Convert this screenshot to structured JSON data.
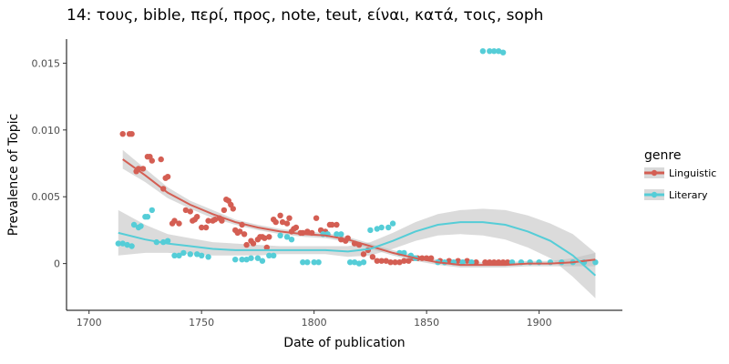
{
  "chart_data": {
    "type": "scatter",
    "title": "14: τους, bible, περί, προς, note, teut, είναι, κατά, τοις, soph",
    "xlabel": "Date of publication",
    "ylabel": "Prevalence of Topic",
    "xlim": [
      1690,
      1937
    ],
    "ylim": [
      -0.0035,
      0.0168
    ],
    "xticks": [
      1700,
      1750,
      1800,
      1850,
      1900
    ],
    "yticks": [
      0,
      0.005,
      0.01,
      0.015
    ],
    "ytick_labels": [
      "0",
      "0.005",
      "0.010",
      "0.015"
    ],
    "grid": false,
    "legend": {
      "title": "genre",
      "position": "right"
    },
    "series": [
      {
        "name": "Linguistic",
        "color": "#d45e53",
        "points": [
          [
            1715,
            0.0097
          ],
          [
            1718,
            0.0097
          ],
          [
            1719,
            0.0097
          ],
          [
            1721,
            0.0069
          ],
          [
            1722,
            0.0071
          ],
          [
            1724,
            0.0071
          ],
          [
            1726,
            0.008
          ],
          [
            1727,
            0.008
          ],
          [
            1728,
            0.0077
          ],
          [
            1732,
            0.0078
          ],
          [
            1733,
            0.0056
          ],
          [
            1734,
            0.0064
          ],
          [
            1735,
            0.0065
          ],
          [
            1737,
            0.003
          ],
          [
            1738,
            0.0032
          ],
          [
            1740,
            0.003
          ],
          [
            1743,
            0.004
          ],
          [
            1745,
            0.0039
          ],
          [
            1746,
            0.0032
          ],
          [
            1747,
            0.0033
          ],
          [
            1748,
            0.0035
          ],
          [
            1750,
            0.0027
          ],
          [
            1752,
            0.0027
          ],
          [
            1753,
            0.0032
          ],
          [
            1755,
            0.0032
          ],
          [
            1756,
            0.0033
          ],
          [
            1758,
            0.0034
          ],
          [
            1759,
            0.0032
          ],
          [
            1760,
            0.004
          ],
          [
            1761,
            0.0048
          ],
          [
            1762,
            0.0047
          ],
          [
            1763,
            0.0044
          ],
          [
            1764,
            0.0041
          ],
          [
            1765,
            0.0025
          ],
          [
            1766,
            0.0023
          ],
          [
            1767,
            0.0024
          ],
          [
            1768,
            0.0029
          ],
          [
            1769,
            0.0022
          ],
          [
            1770,
            0.0014
          ],
          [
            1772,
            0.0017
          ],
          [
            1773,
            0.0015
          ],
          [
            1775,
            0.0018
          ],
          [
            1776,
            0.002
          ],
          [
            1777,
            0.002
          ],
          [
            1778,
            0.0019
          ],
          [
            1779,
            0.0012
          ],
          [
            1780,
            0.002
          ],
          [
            1782,
            0.0033
          ],
          [
            1783,
            0.0031
          ],
          [
            1785,
            0.0036
          ],
          [
            1786,
            0.0031
          ],
          [
            1788,
            0.003
          ],
          [
            1789,
            0.0034
          ],
          [
            1790,
            0.0024
          ],
          [
            1791,
            0.0026
          ],
          [
            1792,
            0.0027
          ],
          [
            1794,
            0.0023
          ],
          [
            1795,
            0.0023
          ],
          [
            1797,
            0.0024
          ],
          [
            1799,
            0.0023
          ],
          [
            1801,
            0.0034
          ],
          [
            1803,
            0.0025
          ],
          [
            1805,
            0.0024
          ],
          [
            1806,
            0.0022
          ],
          [
            1807,
            0.0029
          ],
          [
            1808,
            0.0029
          ],
          [
            1810,
            0.0029
          ],
          [
            1812,
            0.0018
          ],
          [
            1814,
            0.0017
          ],
          [
            1815,
            0.0019
          ],
          [
            1818,
            0.0015
          ],
          [
            1820,
            0.0014
          ],
          [
            1822,
            0.0007
          ],
          [
            1824,
            0.001
          ],
          [
            1826,
            0.0005
          ],
          [
            1828,
            0.0002
          ],
          [
            1830,
            0.0002
          ],
          [
            1832,
            0.0002
          ],
          [
            1834,
            0.0001
          ],
          [
            1836,
            0.0001
          ],
          [
            1838,
            0.0001
          ],
          [
            1840,
            0.0002
          ],
          [
            1842,
            0.0002
          ],
          [
            1844,
            0.0004
          ],
          [
            1846,
            0.0004
          ],
          [
            1848,
            0.0004
          ],
          [
            1850,
            0.0004
          ],
          [
            1852,
            0.0004
          ],
          [
            1856,
            0.0002
          ],
          [
            1860,
            0.0002
          ],
          [
            1864,
            0.0002
          ],
          [
            1868,
            0.0002
          ],
          [
            1872,
            0.0001
          ],
          [
            1876,
            0.0001
          ],
          [
            1878,
            0.0001
          ],
          [
            1880,
            0.0001
          ],
          [
            1882,
            0.0001
          ],
          [
            1884,
            0.0001
          ],
          [
            1886,
            0.0001
          ]
        ],
        "trend": [
          [
            1715,
            0.0078
          ],
          [
            1725,
            0.0066
          ],
          [
            1735,
            0.0053
          ],
          [
            1745,
            0.0044
          ],
          [
            1755,
            0.0037
          ],
          [
            1765,
            0.0031
          ],
          [
            1775,
            0.0027
          ],
          [
            1785,
            0.0024
          ],
          [
            1795,
            0.0022
          ],
          [
            1805,
            0.0021
          ],
          [
            1815,
            0.0018
          ],
          [
            1825,
            0.0013
          ],
          [
            1835,
            0.0008
          ],
          [
            1845,
            0.0004
          ],
          [
            1855,
            0.0001
          ],
          [
            1865,
            -0.0001
          ],
          [
            1875,
            -0.0001
          ],
          [
            1885,
            -0.0001
          ],
          [
            1895,
            0.0
          ],
          [
            1905,
            0.0
          ],
          [
            1915,
            0.0001
          ],
          [
            1925,
            0.0003
          ]
        ],
        "band": [
          [
            1715,
            0.0071,
            0.0085
          ],
          [
            1725,
            0.0061,
            0.0071
          ],
          [
            1735,
            0.0049,
            0.0057
          ],
          [
            1745,
            0.0041,
            0.0047
          ],
          [
            1755,
            0.0034,
            0.004
          ],
          [
            1765,
            0.0029,
            0.0033
          ],
          [
            1775,
            0.0025,
            0.0029
          ],
          [
            1785,
            0.0022,
            0.0026
          ],
          [
            1795,
            0.002,
            0.0024
          ],
          [
            1805,
            0.0019,
            0.0023
          ],
          [
            1815,
            0.0016,
            0.002
          ],
          [
            1825,
            0.0011,
            0.0015
          ],
          [
            1835,
            0.0006,
            0.001
          ],
          [
            1845,
            0.0002,
            0.0006
          ],
          [
            1855,
            -0.0001,
            0.0003
          ],
          [
            1865,
            -0.0003,
            0.0001
          ],
          [
            1875,
            -0.0003,
            0.0001
          ],
          [
            1885,
            -0.0003,
            0.0001
          ],
          [
            1895,
            -0.0002,
            0.0002
          ],
          [
            1905,
            -0.0002,
            0.0002
          ],
          [
            1915,
            -0.0002,
            0.0004
          ],
          [
            1925,
            -0.0002,
            0.0008
          ]
        ]
      },
      {
        "name": "Literary",
        "color": "#55cdd7",
        "points": [
          [
            1713,
            0.0015
          ],
          [
            1715,
            0.0015
          ],
          [
            1717,
            0.0014
          ],
          [
            1719,
            0.0013
          ],
          [
            1720,
            0.0029
          ],
          [
            1722,
            0.0027
          ],
          [
            1723,
            0.0028
          ],
          [
            1725,
            0.0035
          ],
          [
            1726,
            0.0035
          ],
          [
            1728,
            0.004
          ],
          [
            1730,
            0.0016
          ],
          [
            1733,
            0.0016
          ],
          [
            1735,
            0.0017
          ],
          [
            1738,
            0.0006
          ],
          [
            1740,
            0.0006
          ],
          [
            1742,
            0.0008
          ],
          [
            1745,
            0.0007
          ],
          [
            1748,
            0.0007
          ],
          [
            1750,
            0.0006
          ],
          [
            1753,
            0.0005
          ],
          [
            1765,
            0.0003
          ],
          [
            1768,
            0.0003
          ],
          [
            1770,
            0.0003
          ],
          [
            1772,
            0.0004
          ],
          [
            1775,
            0.0004
          ],
          [
            1777,
            0.0002
          ],
          [
            1780,
            0.0006
          ],
          [
            1782,
            0.0006
          ],
          [
            1785,
            0.0021
          ],
          [
            1788,
            0.002
          ],
          [
            1790,
            0.0018
          ],
          [
            1795,
            0.0001
          ],
          [
            1797,
            0.0001
          ],
          [
            1800,
            0.0001
          ],
          [
            1802,
            0.0001
          ],
          [
            1804,
            0.0022
          ],
          [
            1806,
            0.0022
          ],
          [
            1810,
            0.0022
          ],
          [
            1812,
            0.0022
          ],
          [
            1816,
            0.0001
          ],
          [
            1818,
            0.0001
          ],
          [
            1820,
            0.0
          ],
          [
            1822,
            0.0001
          ],
          [
            1825,
            0.0025
          ],
          [
            1828,
            0.0026
          ],
          [
            1830,
            0.0027
          ],
          [
            1833,
            0.0027
          ],
          [
            1835,
            0.003
          ],
          [
            1838,
            0.0008
          ],
          [
            1840,
            0.0008
          ],
          [
            1843,
            0.0006
          ],
          [
            1845,
            0.0004
          ],
          [
            1855,
            0.0001
          ],
          [
            1858,
            0.0001
          ],
          [
            1862,
            0.0001
          ],
          [
            1866,
            0.0001
          ],
          [
            1870,
            0.0001
          ],
          [
            1875,
            0.0159
          ],
          [
            1878,
            0.0159
          ],
          [
            1880,
            0.0159
          ],
          [
            1882,
            0.0159
          ],
          [
            1884,
            0.0158
          ],
          [
            1888,
            0.0001
          ],
          [
            1892,
            0.0001
          ],
          [
            1896,
            0.0001
          ],
          [
            1900,
            0.0001
          ],
          [
            1905,
            0.0001
          ],
          [
            1910,
            0.0001
          ],
          [
            1915,
            0.0001
          ],
          [
            1920,
            0.0001
          ],
          [
            1925,
            0.0001
          ]
        ],
        "trend": [
          [
            1713,
            0.0023
          ],
          [
            1725,
            0.0018
          ],
          [
            1735,
            0.0015
          ],
          [
            1745,
            0.0013
          ],
          [
            1755,
            0.0011
          ],
          [
            1765,
            0.001
          ],
          [
            1775,
            0.001
          ],
          [
            1785,
            0.001
          ],
          [
            1795,
            0.001
          ],
          [
            1805,
            0.001
          ],
          [
            1815,
            0.0009
          ],
          [
            1825,
            0.0011
          ],
          [
            1835,
            0.0017
          ],
          [
            1845,
            0.0024
          ],
          [
            1855,
            0.0029
          ],
          [
            1865,
            0.0031
          ],
          [
            1875,
            0.0031
          ],
          [
            1885,
            0.0029
          ],
          [
            1895,
            0.0024
          ],
          [
            1905,
            0.0017
          ],
          [
            1915,
            0.0006
          ],
          [
            1925,
            -0.0009
          ]
        ],
        "band": [
          [
            1713,
            0.0006,
            0.004
          ],
          [
            1725,
            0.0008,
            0.0029
          ],
          [
            1735,
            0.0008,
            0.0022
          ],
          [
            1745,
            0.0007,
            0.0019
          ],
          [
            1755,
            0.0006,
            0.0016
          ],
          [
            1765,
            0.0006,
            0.0015
          ],
          [
            1775,
            0.0006,
            0.0014
          ],
          [
            1785,
            0.0007,
            0.0013
          ],
          [
            1795,
            0.0007,
            0.0013
          ],
          [
            1805,
            0.0007,
            0.0013
          ],
          [
            1815,
            0.0005,
            0.0013
          ],
          [
            1825,
            0.0006,
            0.0016
          ],
          [
            1835,
            0.0011,
            0.0023
          ],
          [
            1845,
            0.0017,
            0.0031
          ],
          [
            1855,
            0.0021,
            0.0037
          ],
          [
            1865,
            0.0022,
            0.004
          ],
          [
            1875,
            0.0021,
            0.0041
          ],
          [
            1885,
            0.0018,
            0.004
          ],
          [
            1895,
            0.0012,
            0.0036
          ],
          [
            1905,
            0.0004,
            0.003
          ],
          [
            1915,
            -0.001,
            0.0022
          ],
          [
            1925,
            -0.0026,
            0.0008
          ]
        ]
      }
    ]
  }
}
